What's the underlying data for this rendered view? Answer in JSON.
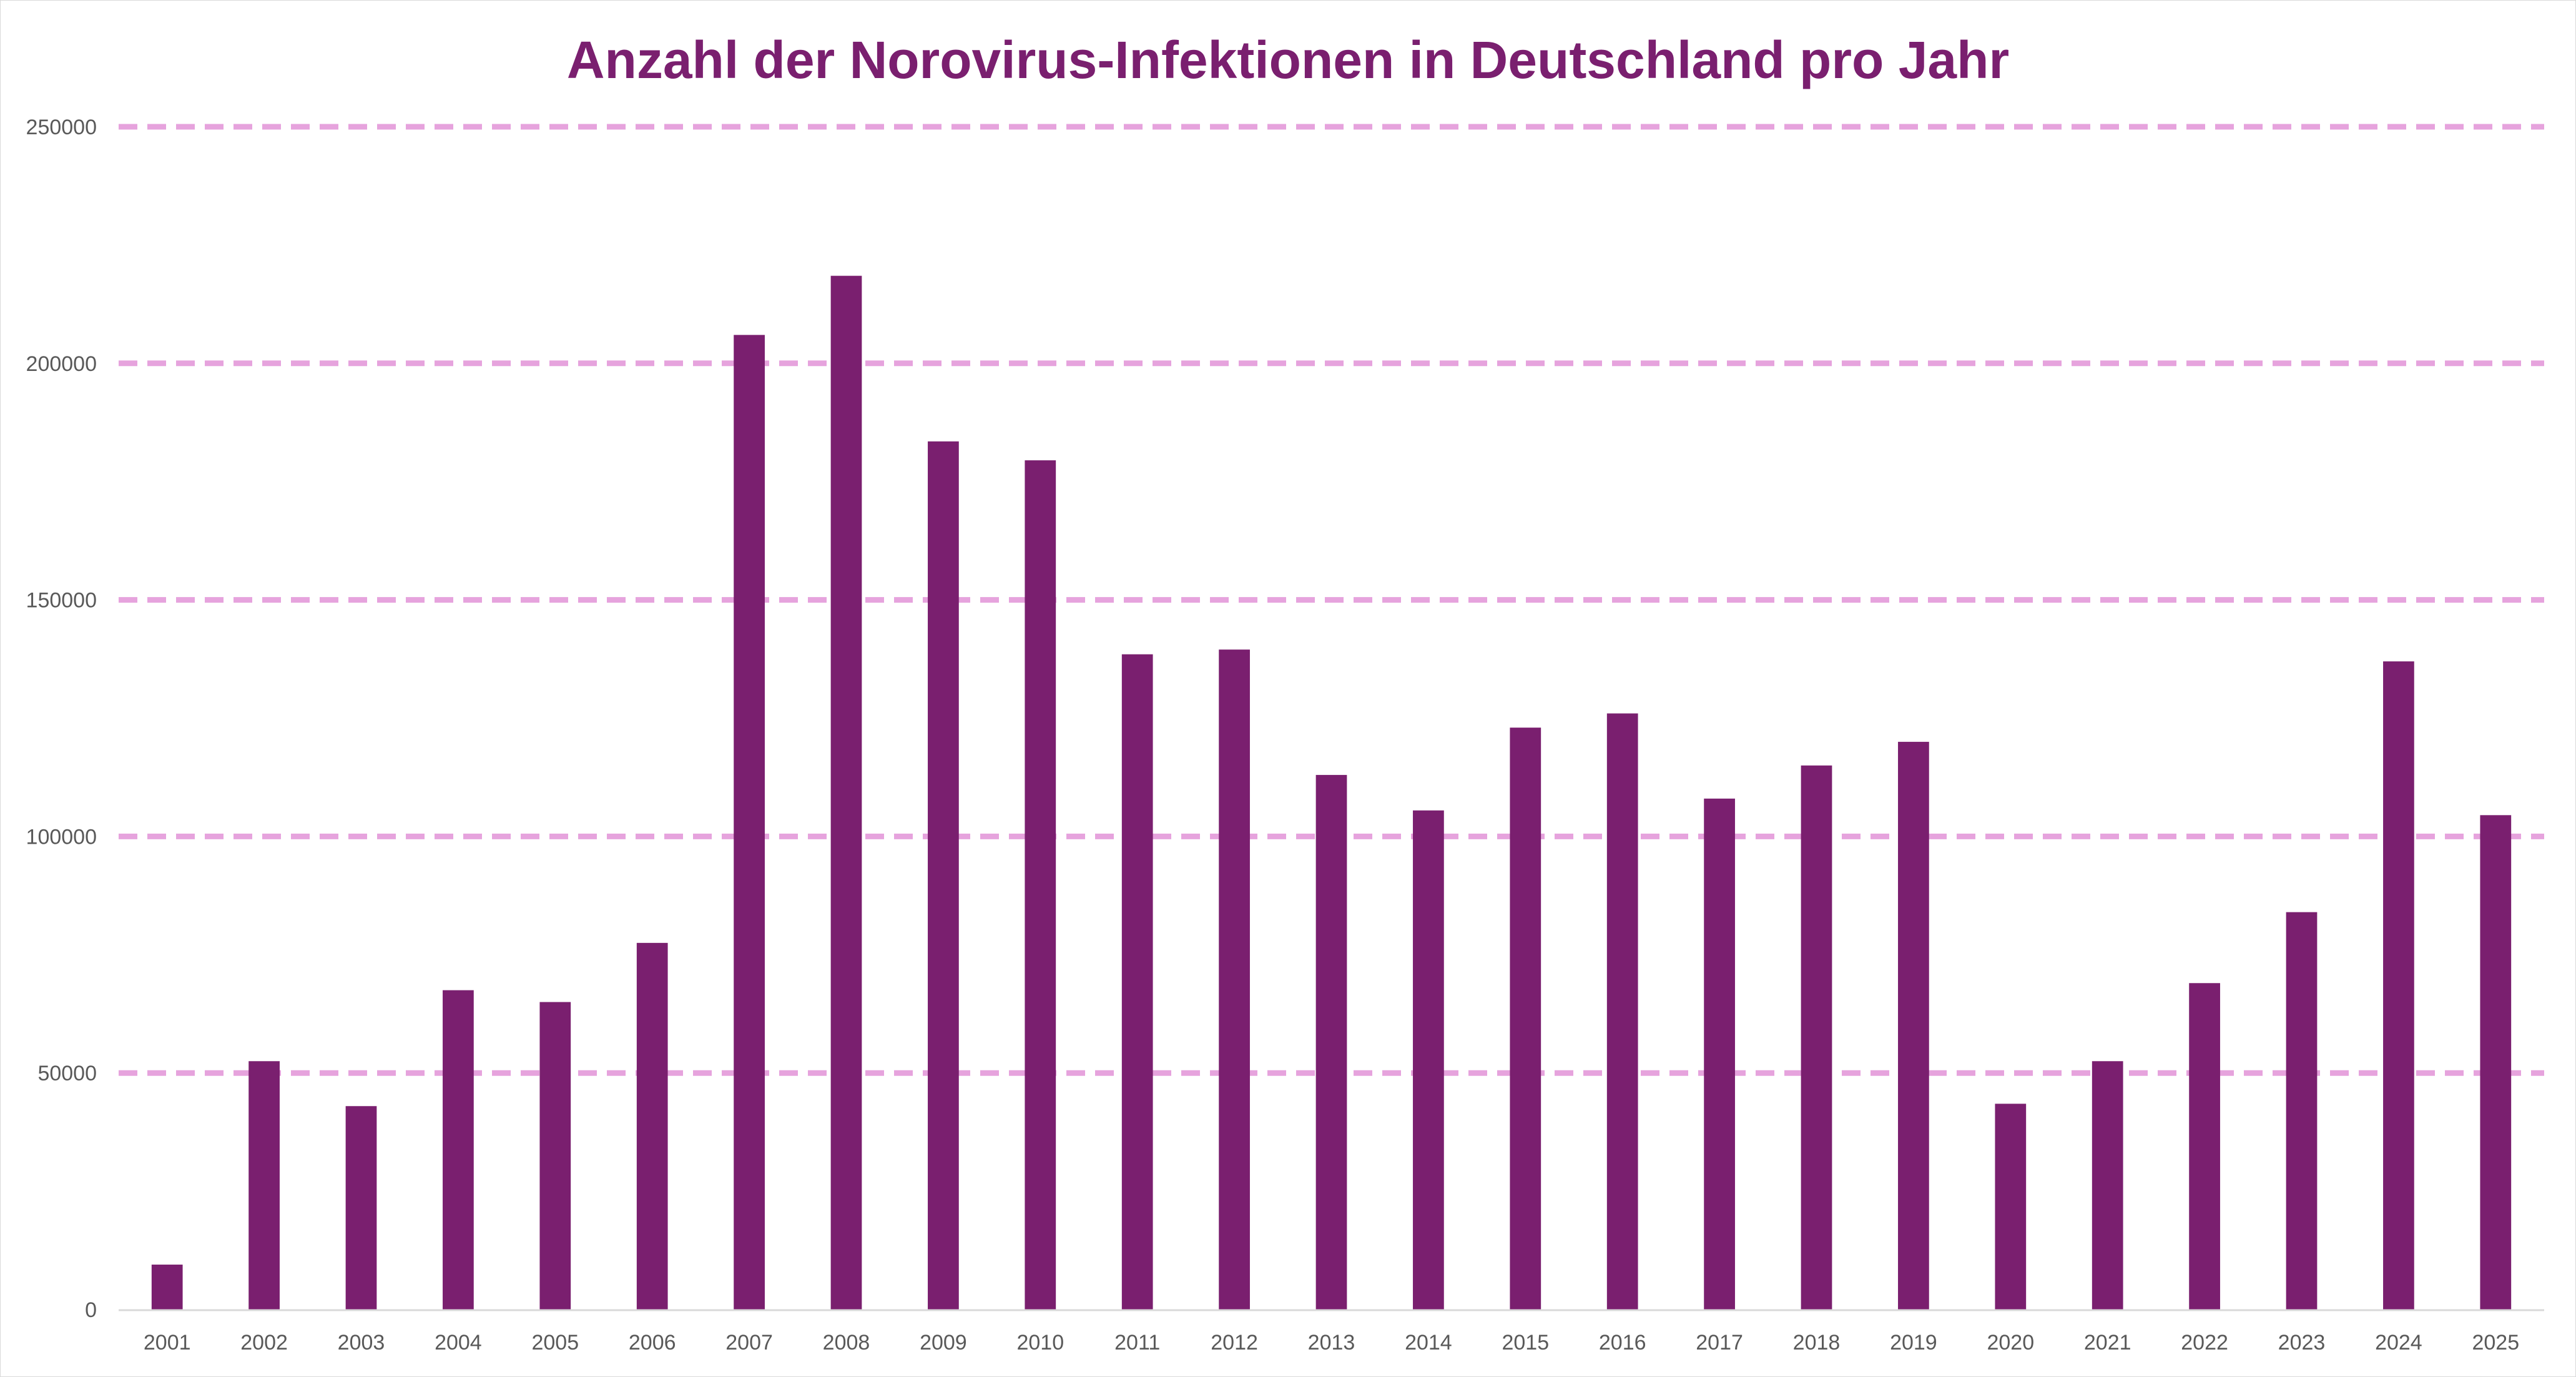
{
  "chart_data": {
    "type": "bar",
    "title": "Anzahl der Norovirus-Infektionen in Deutschland pro Jahr",
    "xlabel": "",
    "ylabel": "",
    "categories": [
      "2001",
      "2002",
      "2003",
      "2004",
      "2005",
      "2006",
      "2007",
      "2008",
      "2009",
      "2010",
      "2011",
      "2012",
      "2013",
      "2014",
      "2015",
      "2016",
      "2017",
      "2018",
      "2019",
      "2020",
      "2021",
      "2022",
      "2023",
      "2024",
      "2025"
    ],
    "values": [
      9500,
      52500,
      43000,
      67500,
      65000,
      77500,
      206000,
      218500,
      183500,
      179500,
      138500,
      139500,
      113000,
      105500,
      123000,
      126000,
      108000,
      115000,
      120000,
      43500,
      52500,
      69000,
      84000,
      137000,
      104500
    ],
    "ylim": [
      0,
      250000
    ],
    "y_ticks": [
      "0",
      "50000",
      "100000",
      "150000",
      "200000",
      "250000"
    ],
    "grid": true,
    "legend": "none",
    "colors": {
      "bar": "#7a1f6f",
      "gridline": "#e6a3dd",
      "title": "#7a1f6f",
      "tick_text": "#595959",
      "axis_line": "#d9d9d9"
    }
  }
}
